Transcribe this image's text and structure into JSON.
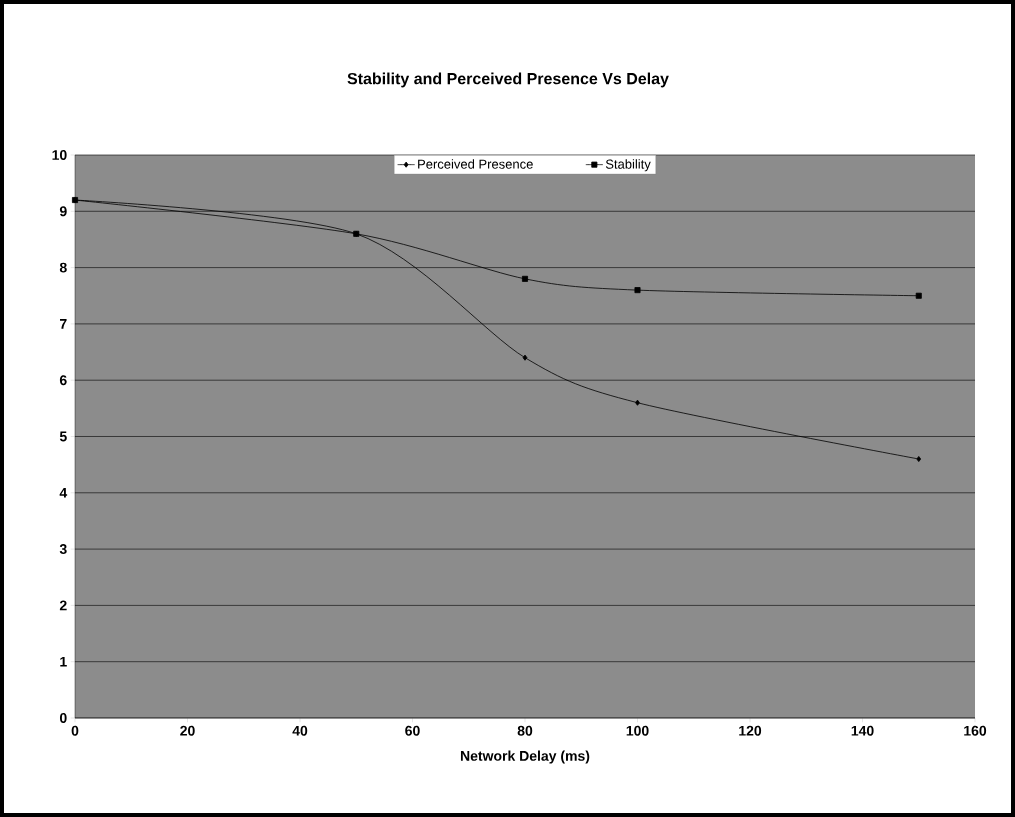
{
  "chart_data": {
    "type": "line",
    "title": "Stability and Perceived Presence Vs Delay",
    "xlabel": "Network Delay (ms)",
    "x": [
      0,
      50,
      80,
      100,
      150
    ],
    "series": [
      {
        "name": "Perceived Presence",
        "color": "#000000",
        "marker": "diamond",
        "values": [
          9.2,
          8.6,
          6.4,
          5.6,
          4.6
        ]
      },
      {
        "name": "Stability",
        "color": "#000000",
        "marker": "square",
        "values": [
          9.2,
          8.6,
          7.8,
          7.6,
          7.5
        ]
      }
    ],
    "xlim": [
      0,
      160
    ],
    "xticks": [
      0,
      20,
      40,
      60,
      80,
      100,
      120,
      140,
      160
    ],
    "ylim": [
      0,
      10
    ],
    "yticks": [
      0,
      1,
      2,
      3,
      4,
      5,
      6,
      7,
      8,
      9,
      10
    ],
    "grid": "y",
    "legend": "top",
    "line_style": "solid"
  }
}
